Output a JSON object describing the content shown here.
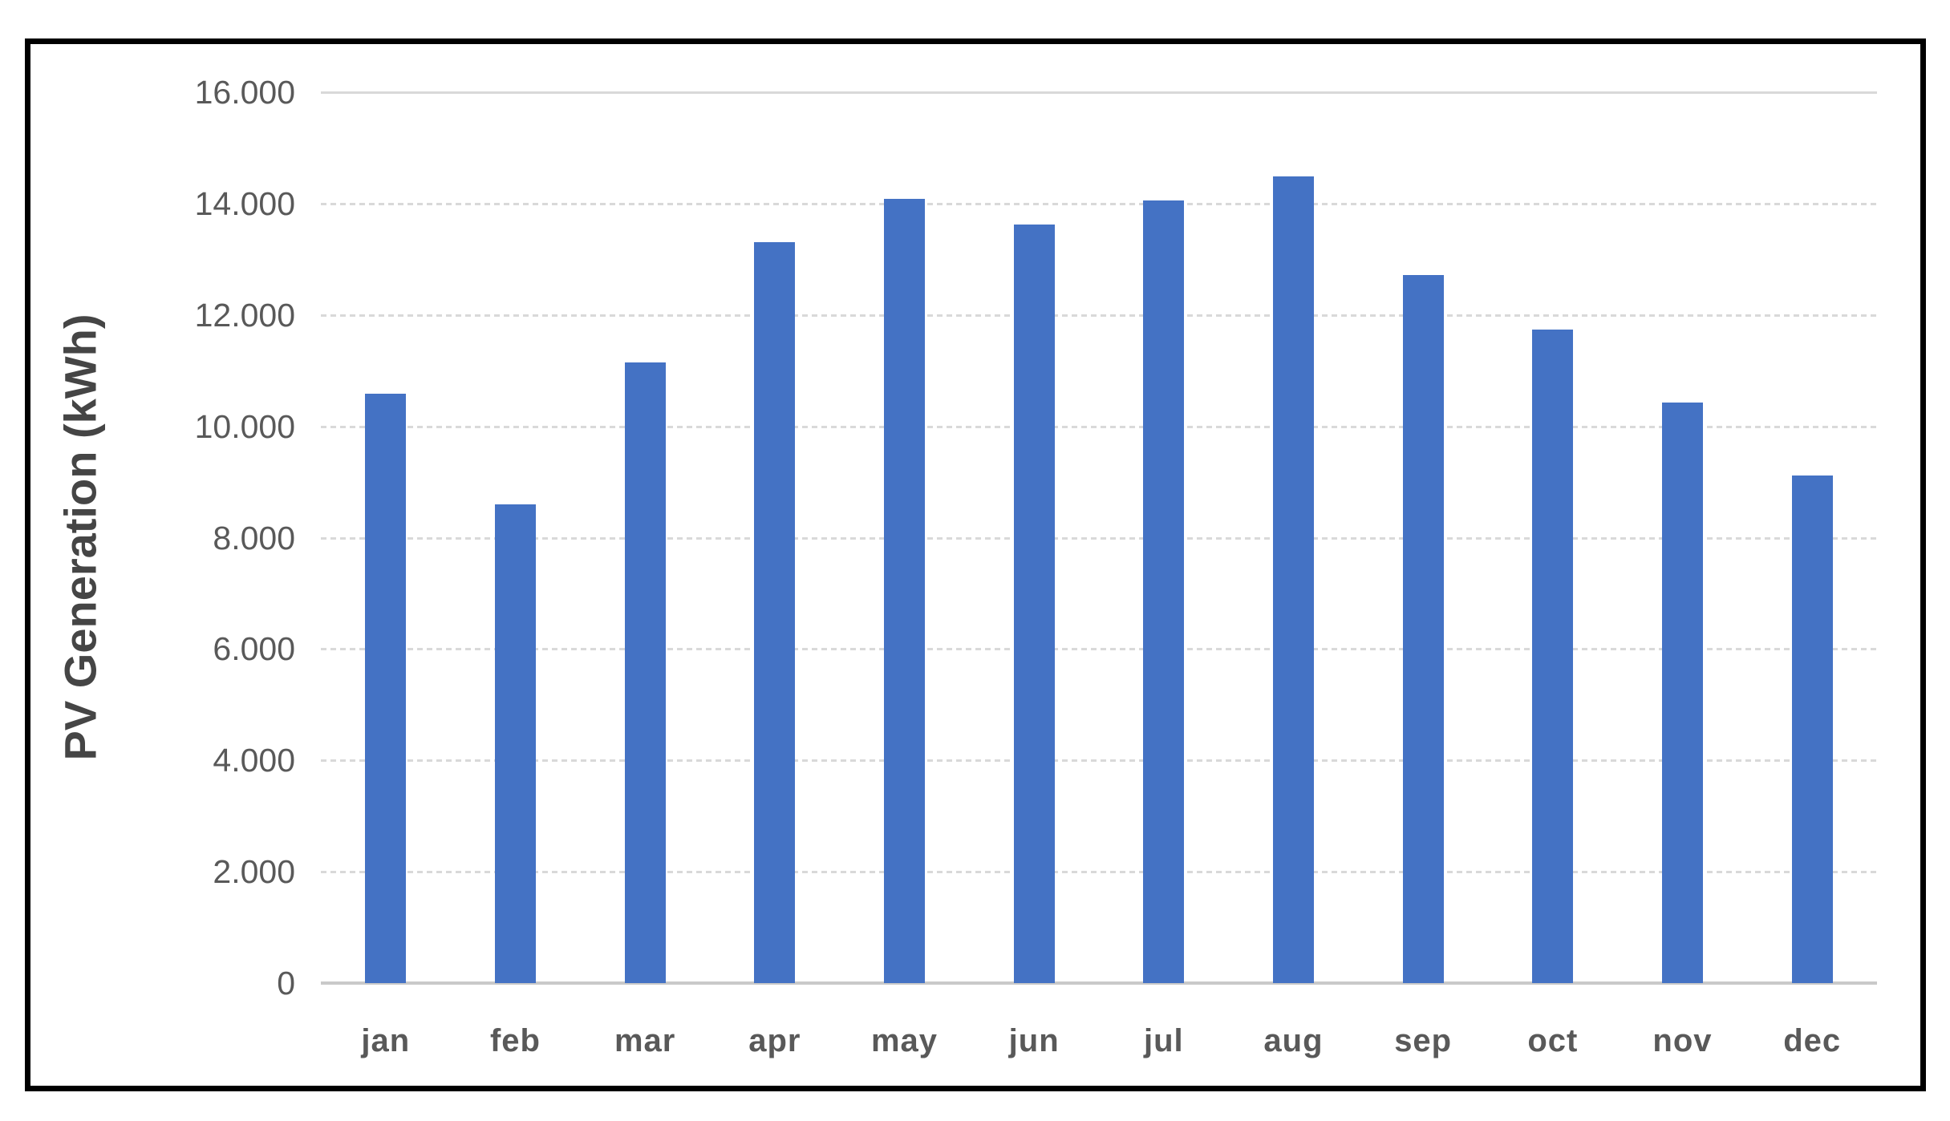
{
  "chart_data": {
    "type": "bar",
    "title": "",
    "xlabel": "",
    "ylabel": "PV Generation (kWh)",
    "categories": [
      "jan",
      "feb",
      "mar",
      "apr",
      "may",
      "jun",
      "jul",
      "aug",
      "sep",
      "oct",
      "nov",
      "dec"
    ],
    "values": [
      10590,
      8600,
      11150,
      13310,
      14080,
      13630,
      14060,
      14490,
      12710,
      11740,
      10430,
      9120
    ],
    "ylim": [
      0,
      16000
    ],
    "ytick_values": [
      0,
      2000,
      4000,
      6000,
      8000,
      10000,
      12000,
      14000,
      16000
    ],
    "ytick_labels": [
      "0",
      "2.000",
      "4.000",
      "6.000",
      "8.000",
      "10.000",
      "12.000",
      "14.000",
      "16.000"
    ],
    "grid": true,
    "legend": "none",
    "bar_color": "#4472C4",
    "gridline_color": "#D9D9D9",
    "axis_line_color": "#C9C9C9",
    "tick_text_color": "#595959",
    "axis_title_color": "#454545",
    "frame_border_color": "#000000"
  }
}
